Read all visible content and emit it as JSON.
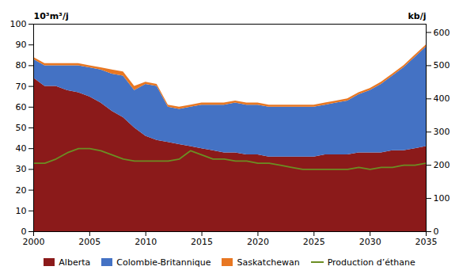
{
  "chart_data": {
    "type": "area",
    "stacked": true,
    "x": [
      2000,
      2001,
      2002,
      2003,
      2004,
      2005,
      2006,
      2007,
      2008,
      2009,
      2010,
      2011,
      2012,
      2013,
      2014,
      2015,
      2016,
      2017,
      2018,
      2019,
      2020,
      2021,
      2022,
      2023,
      2024,
      2025,
      2026,
      2027,
      2028,
      2029,
      2030,
      2031,
      2032,
      2033,
      2034,
      2035
    ],
    "xlim": [
      2000,
      2035
    ],
    "xticks": [
      2000,
      2005,
      2010,
      2015,
      2020,
      2025,
      2030,
      2035
    ],
    "ylim": [
      0,
      100
    ],
    "yticks": [
      0,
      10,
      20,
      30,
      40,
      50,
      60,
      70,
      80,
      90,
      100
    ],
    "ylabel": "10³m³/j",
    "y2lim": [
      0,
      625
    ],
    "y2ticks": [
      0,
      100,
      200,
      300,
      400,
      500,
      600
    ],
    "y2label": "kb/j",
    "grid": false,
    "legend": "bottom",
    "series": [
      {
        "name": "Alberta",
        "color": "#8B1A1A",
        "values": [
          74,
          70,
          70,
          68,
          67,
          65,
          62,
          58,
          55,
          50,
          46,
          44,
          43,
          42,
          41,
          40,
          39,
          38,
          38,
          37,
          37,
          36,
          36,
          36,
          36,
          36,
          37,
          37,
          37,
          38,
          38,
          38,
          39,
          39,
          40,
          41
        ]
      },
      {
        "name": "Colombie-Britannique",
        "color": "#4472C4",
        "values": [
          9,
          10,
          10,
          12,
          13,
          14,
          16,
          18,
          20,
          18,
          25,
          26,
          17,
          17,
          19,
          21,
          22,
          23,
          24,
          24,
          24,
          24,
          24,
          24,
          24,
          24,
          24,
          25,
          26,
          28,
          30,
          33,
          36,
          40,
          44,
          48
        ]
      },
      {
        "name": "Saskatchewan",
        "color": "#E87722",
        "values": [
          1,
          1,
          1,
          1,
          1,
          1,
          1,
          2,
          2,
          2,
          1,
          1,
          1,
          1,
          1,
          1,
          1,
          1,
          1,
          1,
          1,
          1,
          1,
          1,
          1,
          1,
          1,
          1,
          1,
          1,
          1,
          1,
          1,
          1,
          1,
          1
        ]
      },
      {
        "name": "Production d’éthane",
        "type": "line",
        "color": "#6B8E23",
        "values": [
          33,
          33,
          35,
          38,
          40,
          40,
          39,
          37,
          35,
          34,
          34,
          34,
          34,
          35,
          39,
          37,
          35,
          35,
          34,
          34,
          33,
          33,
          32,
          31,
          30,
          30,
          30,
          30,
          30,
          31,
          30,
          31,
          31,
          32,
          32,
          33
        ]
      }
    ]
  }
}
